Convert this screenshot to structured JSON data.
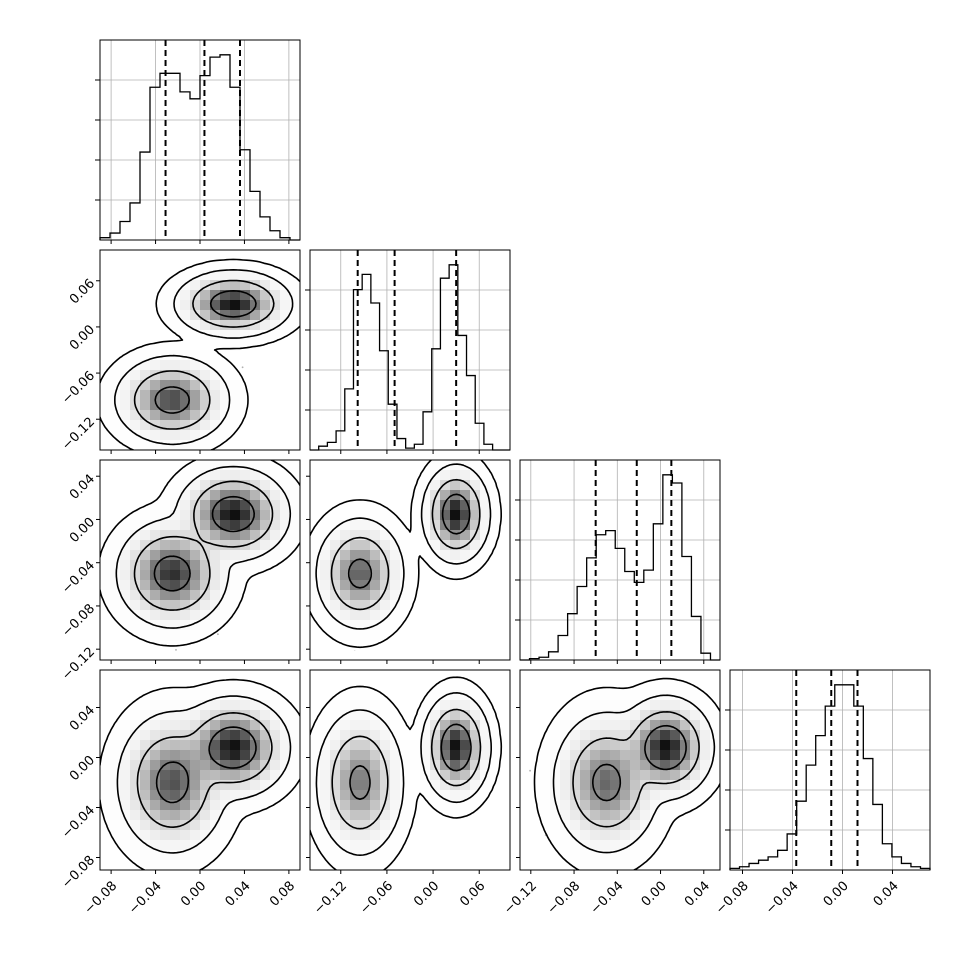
{
  "chart_data": {
    "type": "corner",
    "title": "",
    "grid": true,
    "variables": [
      {
        "range": [
          -0.09,
          0.09
        ],
        "ticks": [
          -0.08,
          -0.04,
          0.0,
          0.04,
          0.08
        ],
        "tick_labels": [
          "−0.08",
          "−0.04",
          "0.00",
          "0.04",
          "0.08"
        ],
        "quantiles": [
          -0.031,
          0.004,
          0.036
        ]
      },
      {
        "range": [
          -0.16,
          0.1
        ],
        "ticks": [
          -0.12,
          -0.06,
          0.0,
          0.06
        ],
        "tick_labels": [
          "−0.12",
          "−0.06",
          "0.00",
          "0.06"
        ],
        "quantiles": [
          -0.098,
          -0.05,
          0.03
        ]
      },
      {
        "range": [
          -0.13,
          0.055
        ],
        "ticks": [
          -0.12,
          -0.08,
          -0.04,
          0.0,
          0.04
        ],
        "tick_labels": [
          "−0.12",
          "−0.08",
          "−0.04",
          "0.00",
          "0.04"
        ],
        "quantiles": [
          -0.06,
          -0.022,
          0.01
        ]
      },
      {
        "range": [
          -0.09,
          0.07
        ],
        "ticks": [
          -0.08,
          -0.04,
          0.0,
          0.04
        ],
        "tick_labels": [
          "−0.08",
          "−0.04",
          "0.00",
          "0.04"
        ],
        "quantiles": [
          -0.037,
          -0.009,
          0.012
        ]
      }
    ],
    "histograms": [
      {
        "variable": 0,
        "counts": [
          1,
          3,
          8,
          16,
          38,
          66,
          72,
          72,
          64,
          61,
          71,
          79,
          80,
          66,
          39,
          21,
          10,
          4,
          1,
          0
        ]
      },
      {
        "variable": 1,
        "counts": [
          0,
          2,
          4,
          10,
          32,
          84,
          92,
          77,
          52,
          24,
          6,
          1,
          3,
          20,
          53,
          90,
          97,
          60,
          39,
          14,
          3,
          0,
          0
        ]
      },
      {
        "variable": 2,
        "counts": [
          0,
          1,
          2,
          6,
          18,
          34,
          54,
          75,
          92,
          95,
          82,
          65,
          57,
          66,
          100,
          136,
          130,
          76,
          32,
          5,
          0
        ]
      },
      {
        "variable": 3,
        "counts": [
          1,
          2,
          4,
          6,
          8,
          12,
          22,
          42,
          64,
          82,
          100,
          113,
          113,
          100,
          68,
          40,
          16,
          8,
          4,
          2,
          1
        ]
      }
    ],
    "clusters": [
      {
        "weight": 0.5,
        "mean": [
          -0.025,
          -0.095,
          -0.05,
          -0.02
        ],
        "sd": [
          0.0175,
          0.0195,
          0.0175,
          0.02
        ]
      },
      {
        "weight": 0.5,
        "mean": [
          0.03,
          0.03,
          0.005,
          0.008
        ],
        "sd": [
          0.0175,
          0.0145,
          0.015,
          0.014
        ]
      }
    ],
    "scatter_points_per_cluster": 1200,
    "contour_levels": [
      0.3935,
      0.8647,
      0.9889,
      0.9997
    ],
    "colors": {
      "line": "#000000",
      "grid": "#b0b0b0",
      "scatter": "#6e6e6e",
      "density_max": "#000000"
    }
  }
}
